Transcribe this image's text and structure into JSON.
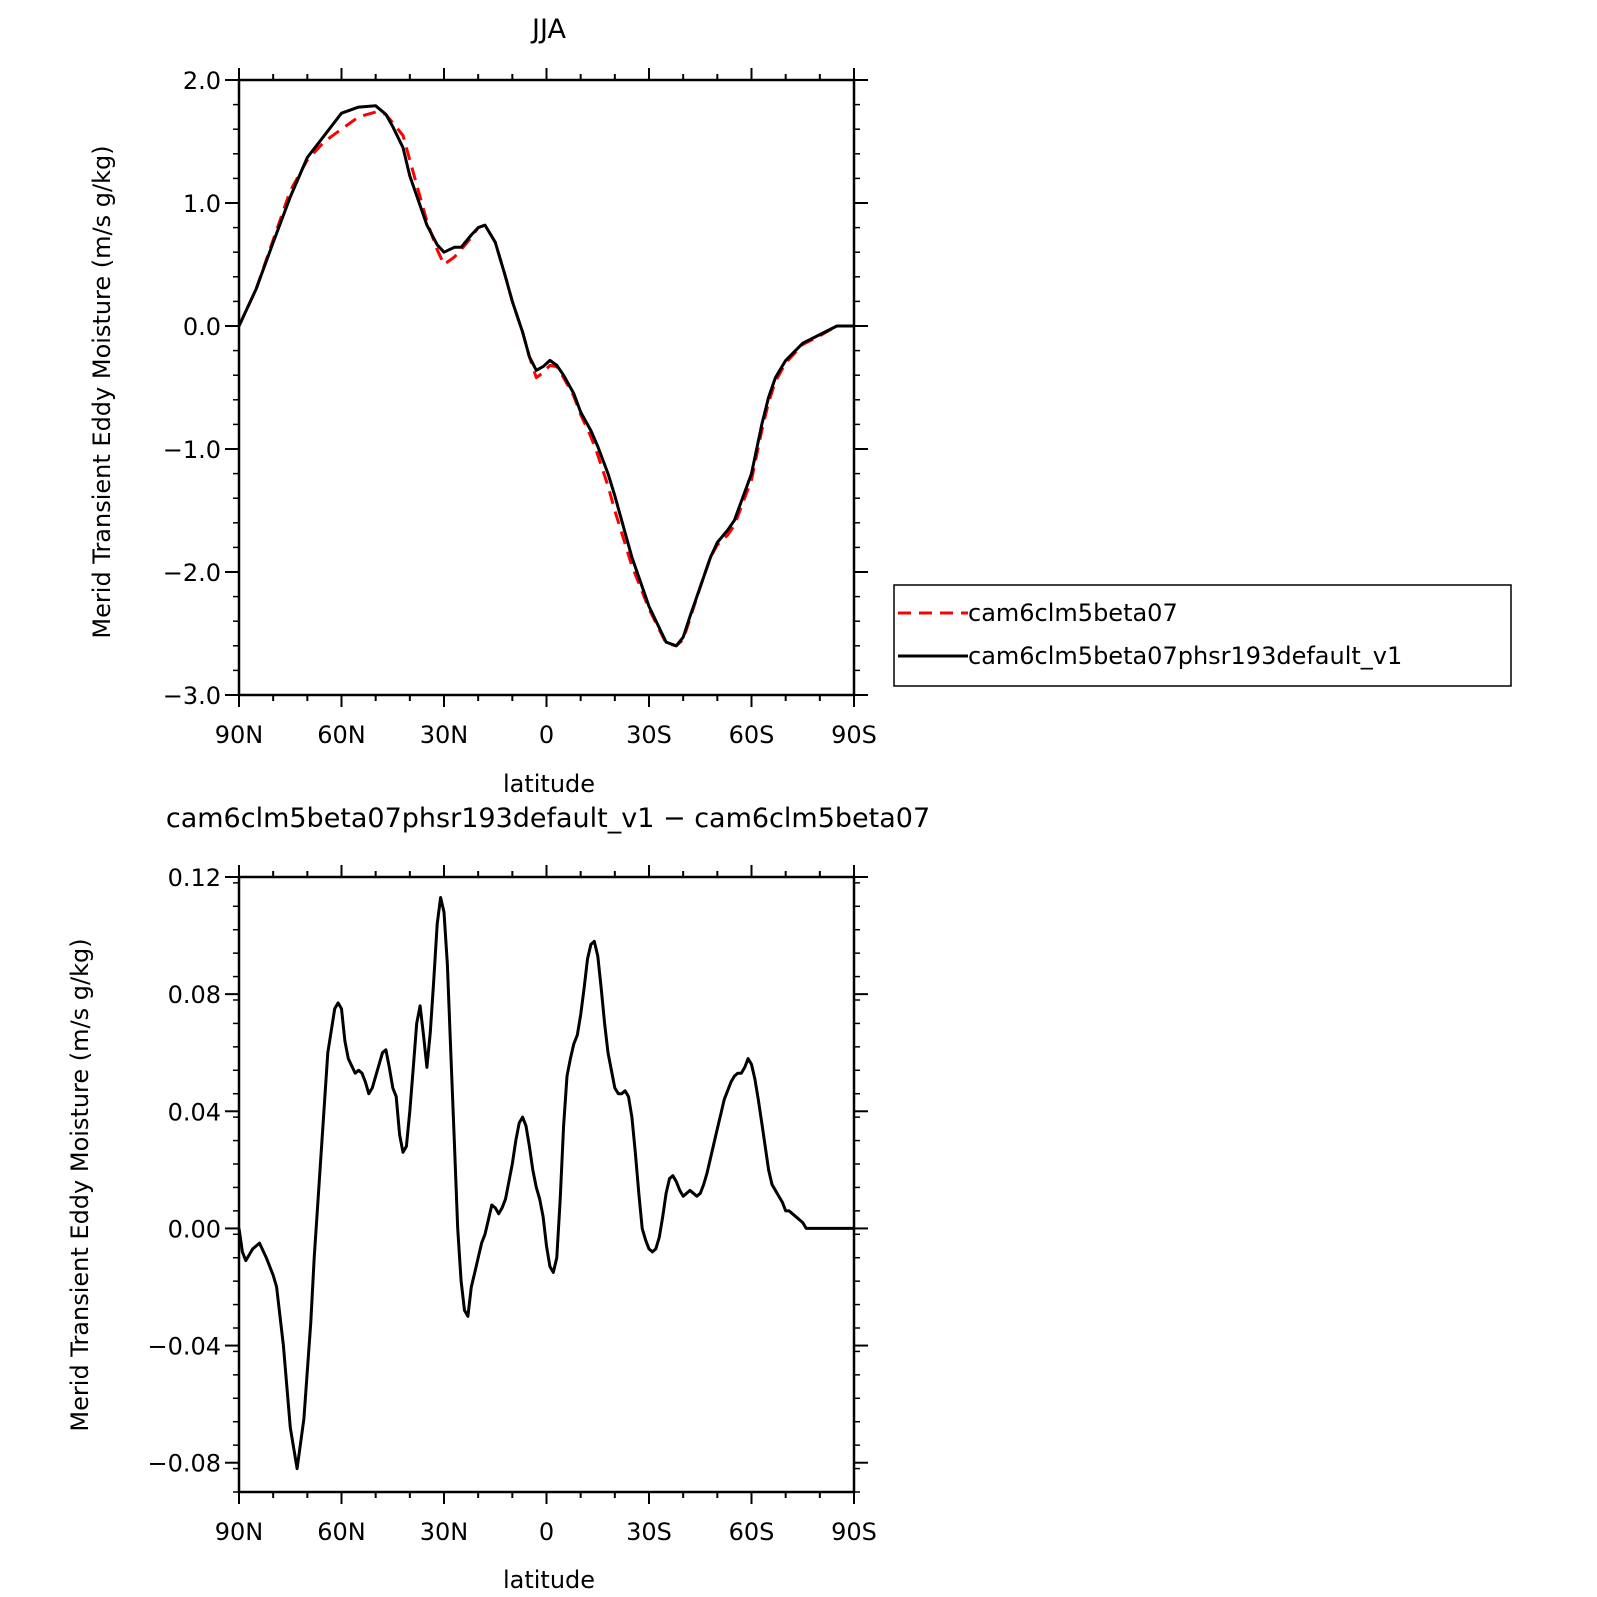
{
  "chart_data": [
    {
      "type": "line",
      "title": "JJA",
      "xlabel": "latitude",
      "ylabel": "Merid Transient Eddy Moisture (m/s g/kg)",
      "x_tick_labels": [
        "90N",
        "60N",
        "30N",
        "0",
        "30S",
        "60S",
        "90S"
      ],
      "x_ticks": [
        90,
        60,
        30,
        0,
        -30,
        -60,
        -90
      ],
      "xlim": [
        90,
        -90
      ],
      "ylim": [
        -3.0,
        2.0
      ],
      "y_ticks": [
        2.0,
        1.0,
        0.0,
        -1.0,
        -2.0,
        -3.0
      ],
      "y_tick_labels": [
        "2.0",
        "1.0",
        "0.0",
        "−1.0",
        "−2.0",
        "−3.0"
      ],
      "grid": false,
      "legend_placement": "right",
      "series": [
        {
          "name": "cam6clm5beta07",
          "color": "#ff0000",
          "style": "dashed",
          "x": [
            90,
            85,
            80,
            75,
            70,
            65,
            60,
            55,
            50,
            47,
            45,
            42,
            40,
            37,
            35,
            32,
            30,
            27,
            25,
            22,
            20,
            18,
            15,
            12,
            10,
            7,
            5,
            3,
            1,
            -1,
            -3,
            -5,
            -8,
            -10,
            -13,
            -15,
            -18,
            -20,
            -25,
            -30,
            -35,
            -38,
            -40,
            -42,
            -45,
            -48,
            -50,
            -53,
            -55,
            -60,
            -63,
            -65,
            -67,
            -70,
            -75,
            -80,
            -85,
            -90
          ],
          "y": [
            0.0,
            0.3,
            0.7,
            1.1,
            1.35,
            1.5,
            1.6,
            1.7,
            1.74,
            1.72,
            1.65,
            1.55,
            1.35,
            1.05,
            0.85,
            0.62,
            0.5,
            0.56,
            0.62,
            0.72,
            0.8,
            0.82,
            0.68,
            0.4,
            0.2,
            -0.05,
            -0.25,
            -0.42,
            -0.38,
            -0.32,
            -0.33,
            -0.42,
            -0.57,
            -0.72,
            -0.9,
            -1.05,
            -1.3,
            -1.5,
            -1.95,
            -2.3,
            -2.58,
            -2.6,
            -2.55,
            -2.38,
            -2.12,
            -1.88,
            -1.78,
            -1.7,
            -1.62,
            -1.25,
            -0.85,
            -0.62,
            -0.45,
            -0.3,
            -0.15,
            -0.08,
            0.0,
            0.0
          ]
        },
        {
          "name": "cam6clm5beta07phsr193default_v1",
          "color": "#000000",
          "style": "solid",
          "x": [
            90,
            85,
            80,
            75,
            70,
            65,
            60,
            55,
            50,
            47,
            45,
            42,
            40,
            37,
            35,
            32,
            30,
            27,
            25,
            22,
            20,
            18,
            15,
            12,
            10,
            7,
            5,
            3,
            1,
            -1,
            -3,
            -5,
            -8,
            -10,
            -13,
            -15,
            -18,
            -20,
            -25,
            -30,
            -35,
            -38,
            -40,
            -42,
            -45,
            -48,
            -50,
            -53,
            -55,
            -60,
            -63,
            -65,
            -67,
            -70,
            -75,
            -80,
            -85,
            -90
          ],
          "y": [
            0.0,
            0.3,
            0.68,
            1.05,
            1.37,
            1.55,
            1.73,
            1.78,
            1.79,
            1.72,
            1.62,
            1.45,
            1.22,
            0.98,
            0.82,
            0.66,
            0.6,
            0.64,
            0.64,
            0.74,
            0.8,
            0.82,
            0.68,
            0.4,
            0.2,
            -0.05,
            -0.25,
            -0.36,
            -0.33,
            -0.28,
            -0.32,
            -0.4,
            -0.55,
            -0.7,
            -0.85,
            -0.98,
            -1.2,
            -1.38,
            -1.88,
            -2.28,
            -2.57,
            -2.6,
            -2.53,
            -2.36,
            -2.12,
            -1.88,
            -1.76,
            -1.66,
            -1.58,
            -1.2,
            -0.8,
            -0.58,
            -0.42,
            -0.28,
            -0.14,
            -0.07,
            0.0,
            0.0
          ]
        }
      ]
    },
    {
      "type": "line",
      "title": "cam6clm5beta07phsr193default_v1 − cam6clm5beta07",
      "xlabel": "latitude",
      "ylabel": "Merid Transient Eddy Moisture (m/s g/kg)",
      "x_tick_labels": [
        "90N",
        "60N",
        "30N",
        "0",
        "30S",
        "60S",
        "90S"
      ],
      "x_ticks": [
        90,
        60,
        30,
        0,
        -30,
        -60,
        -90
      ],
      "xlim": [
        90,
        -90
      ],
      "ylim": [
        -0.09,
        0.12
      ],
      "y_ticks": [
        0.12,
        0.08,
        0.04,
        0.0,
        -0.04,
        -0.08
      ],
      "y_tick_labels": [
        "0.12",
        "0.08",
        "0.04",
        "0.00",
        "−0.04",
        "−0.08"
      ],
      "grid": false,
      "series": [
        {
          "color": "#000000",
          "style": "solid",
          "x": [
            90,
            89,
            88,
            86,
            84,
            82,
            80,
            79,
            77,
            75,
            73,
            71,
            69,
            68,
            66,
            64,
            62,
            61,
            60,
            59,
            58,
            56,
            55,
            54,
            53,
            52,
            51,
            50,
            49,
            48,
            47,
            46,
            45,
            44,
            43,
            42,
            41,
            40,
            39,
            38,
            37,
            36,
            35,
            34,
            33,
            32,
            31,
            30,
            29,
            28,
            27,
            26,
            25,
            24,
            23,
            22,
            21,
            20,
            19,
            18,
            17,
            16,
            15,
            14,
            13,
            12,
            11,
            10,
            9,
            8,
            7,
            6,
            5,
            4,
            3,
            2,
            1,
            0,
            -1,
            -2,
            -3,
            -4,
            -5,
            -6,
            -7,
            -8,
            -9,
            -10,
            -11,
            -12,
            -13,
            -14,
            -15,
            -16,
            -17,
            -18,
            -19,
            -20,
            -21,
            -22,
            -23,
            -24,
            -25,
            -26,
            -27,
            -28,
            -29,
            -30,
            -31,
            -32,
            -33,
            -34,
            -35,
            -36,
            -37,
            -38,
            -39,
            -40,
            -41,
            -42,
            -43,
            -44,
            -45,
            -46,
            -47,
            -48,
            -49,
            -50,
            -51,
            -52,
            -53,
            -54,
            -55,
            -56,
            -57,
            -58,
            -59,
            -60,
            -61,
            -62,
            -63,
            -64,
            -65,
            -66,
            -67,
            -68,
            -69,
            -70,
            -71,
            -72,
            -73,
            -74,
            -75,
            -76,
            -77,
            -78,
            -79,
            -80,
            -81,
            -82,
            -83,
            -84,
            -85,
            -86,
            -87,
            -88,
            -89,
            -90
          ],
          "y": [
            0.0,
            -0.008,
            -0.011,
            -0.007,
            -0.005,
            -0.01,
            -0.016,
            -0.02,
            -0.04,
            -0.068,
            -0.082,
            -0.065,
            -0.032,
            -0.01,
            0.025,
            0.06,
            0.075,
            0.077,
            0.075,
            0.064,
            0.058,
            0.053,
            0.054,
            0.053,
            0.05,
            0.046,
            0.048,
            0.052,
            0.056,
            0.06,
            0.061,
            0.055,
            0.048,
            0.045,
            0.032,
            0.026,
            0.028,
            0.04,
            0.055,
            0.07,
            0.076,
            0.066,
            0.055,
            0.067,
            0.085,
            0.104,
            0.113,
            0.108,
            0.09,
            0.06,
            0.03,
            0.0,
            -0.018,
            -0.028,
            -0.03,
            -0.02,
            -0.015,
            -0.01,
            -0.005,
            -0.002,
            0.003,
            0.008,
            0.007,
            0.005,
            0.007,
            0.01,
            0.016,
            0.022,
            0.03,
            0.036,
            0.038,
            0.035,
            0.028,
            0.02,
            0.014,
            0.01,
            0.004,
            -0.006,
            -0.013,
            -0.015,
            -0.01,
            0.01,
            0.035,
            0.052,
            0.058,
            0.063,
            0.066,
            0.073,
            0.082,
            0.092,
            0.097,
            0.098,
            0.093,
            0.082,
            0.07,
            0.06,
            0.054,
            0.048,
            0.046,
            0.046,
            0.047,
            0.045,
            0.038,
            0.026,
            0.012,
            0.0,
            -0.004,
            -0.007,
            -0.008,
            -0.007,
            -0.003,
            0.004,
            0.012,
            0.017,
            0.018,
            0.016,
            0.013,
            0.011,
            0.012,
            0.013,
            0.012,
            0.011,
            0.012,
            0.015,
            0.019,
            0.024,
            0.029,
            0.034,
            0.039,
            0.044,
            0.047,
            0.05,
            0.052,
            0.053,
            0.053,
            0.055,
            0.058,
            0.056,
            0.051,
            0.044,
            0.036,
            0.028,
            0.02,
            0.015,
            0.013,
            0.011,
            0.009,
            0.006,
            0.006,
            0.005,
            0.004,
            0.003,
            0.002,
            0.0,
            0.0,
            0.0,
            0.0,
            0.0,
            0.0,
            0.0,
            0.0,
            0.0,
            0.0,
            0.0,
            0.0,
            0.0,
            0.0,
            0.0
          ]
        }
      ]
    }
  ]
}
